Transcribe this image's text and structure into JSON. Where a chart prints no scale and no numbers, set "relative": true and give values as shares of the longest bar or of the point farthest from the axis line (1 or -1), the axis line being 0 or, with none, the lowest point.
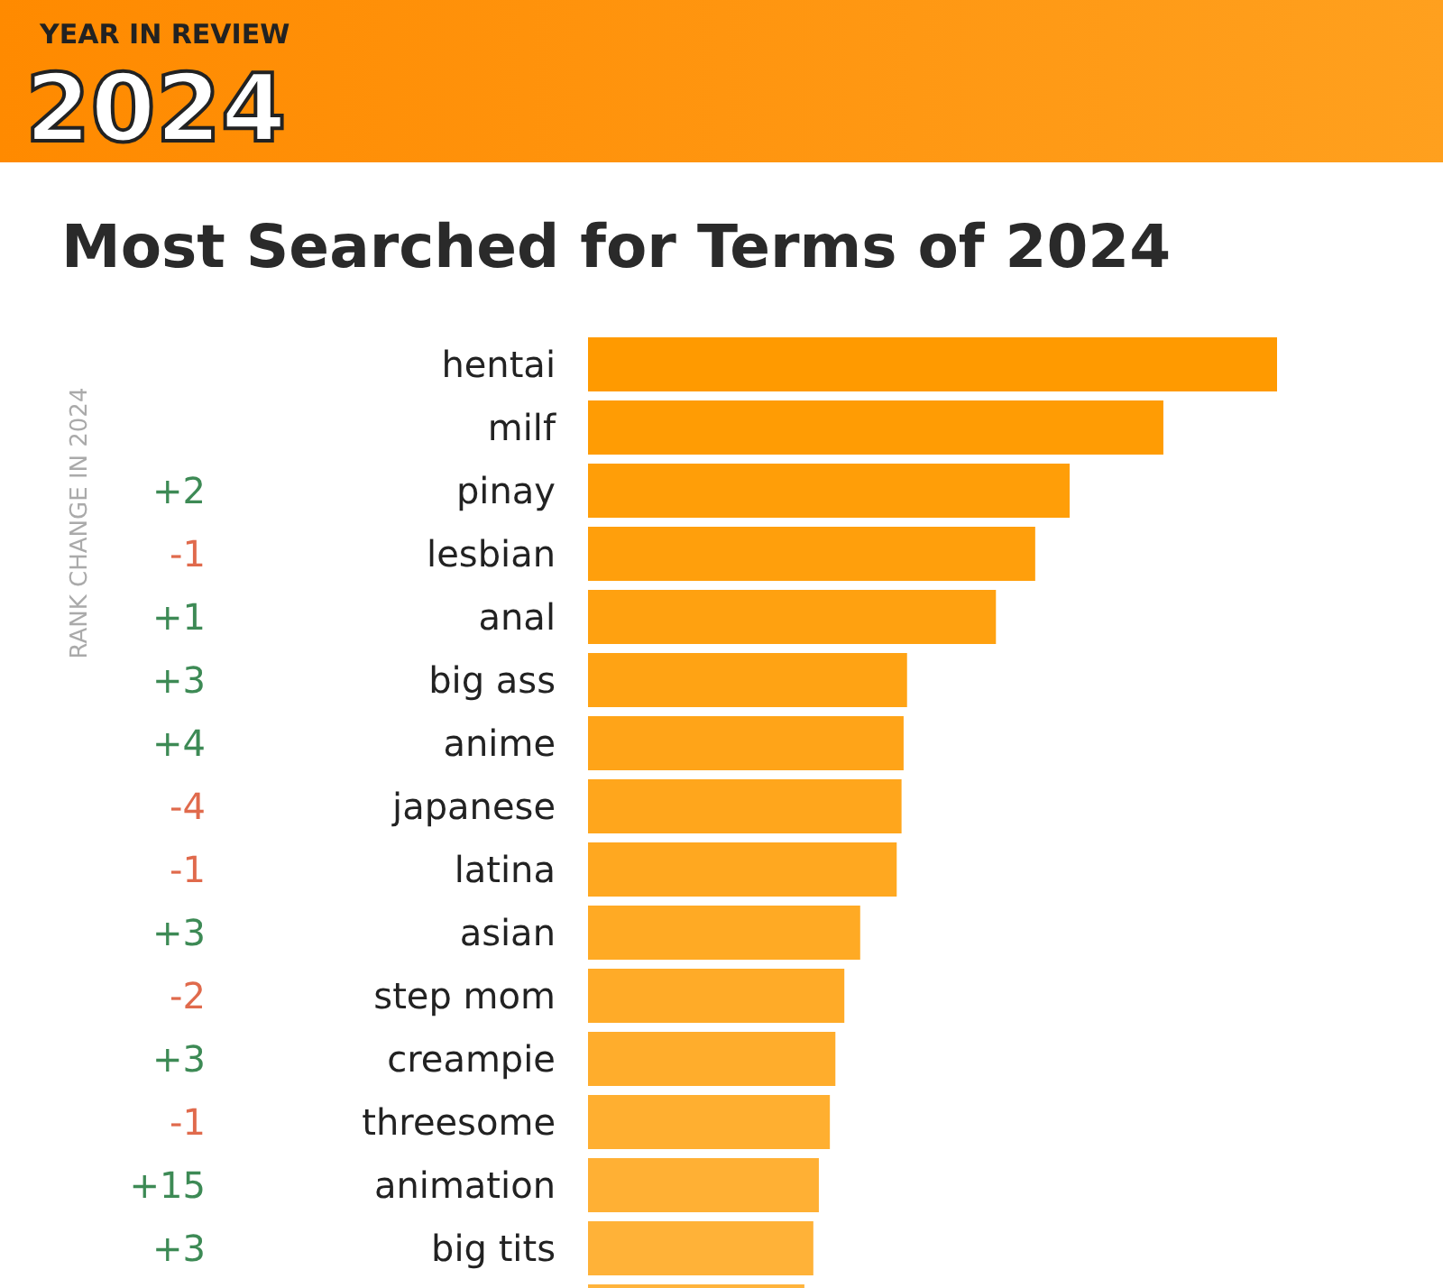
{
  "chart_data": {
    "type": "bar",
    "orientation": "horizontal",
    "relative": true,
    "title": "Most Searched for Terms of 2024",
    "categories": [
      "hentai",
      "milf",
      "pinay",
      "lesbian",
      "anal",
      "big ass",
      "anime",
      "japanese",
      "latina",
      "asian",
      "step mom",
      "creampie",
      "threesome",
      "animation",
      "big tits",
      null
    ],
    "values": [
      1,
      0.835,
      0.699,
      0.649,
      0.592,
      0.463,
      0.458,
      0.455,
      0.448,
      0.395,
      0.372,
      0.359,
      0.351,
      0.335,
      0.327,
      0.314
    ],
    "colors": [
      "#ff9a00",
      "#ff9c04",
      "#ff9e08",
      "#ff9f0c",
      "#ffa110",
      "#ffa314",
      "#ffa418",
      "#ffa61c",
      "#ffa820",
      "#ffaa24",
      "#ffab28",
      "#ffad2c",
      "#ffaf30",
      "#ffb034",
      "#ffb238",
      "#ffb43c"
    ],
    "annotations": [
      "YEAR IN REVIEW",
      "2024",
      "RANK CHANGE IN 2024",
      "+2",
      "-1",
      "+1",
      "+3",
      "+4",
      "-4",
      "-1",
      "+3",
      "-2",
      "+3",
      "-1",
      "+15",
      "+3"
    ]
  }
}
